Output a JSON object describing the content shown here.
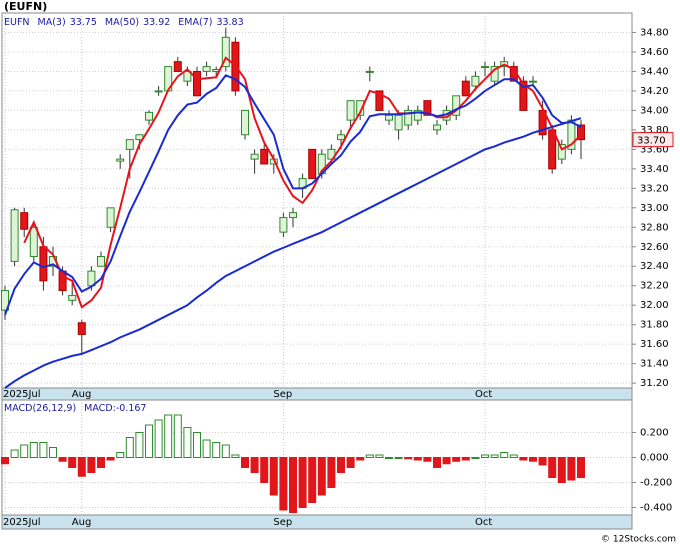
{
  "chart_data": [
    {
      "type": "candlestick",
      "title": "(EUFN)",
      "symbol": "EUFN",
      "categories": [
        "2025Jul",
        null,
        null,
        null,
        null,
        null,
        null,
        null,
        "Aug",
        null,
        null,
        null,
        null,
        null,
        null,
        null,
        null,
        null,
        null,
        null,
        null,
        null,
        null,
        null,
        null,
        null,
        null,
        null,
        null,
        "Sep",
        null,
        null,
        null,
        null,
        null,
        null,
        null,
        null,
        null,
        null,
        null,
        null,
        null,
        null,
        null,
        null,
        null,
        null,
        null,
        null,
        "Oct",
        null,
        null,
        null,
        null,
        null,
        null,
        null,
        null,
        null,
        null
      ],
      "open": [
        31.95,
        32.45,
        32.95,
        32.5,
        32.6,
        32.4,
        32.35,
        32.05,
        31.82,
        32.2,
        32.4,
        32.8,
        33.48,
        33.6,
        33.7,
        33.9,
        34.2,
        34.2,
        34.5,
        34.3,
        34.4,
        34.4,
        34.4,
        34.45,
        34.7,
        33.75,
        33.5,
        33.6,
        33.45,
        32.75,
        32.9,
        33.2,
        33.6,
        33.35,
        33.5,
        33.7,
        33.9,
        33.95,
        34.4,
        34.2,
        33.9,
        33.8,
        33.85,
        33.9,
        34.1,
        33.8,
        33.9,
        33.95,
        34.3,
        34.25,
        34.45,
        34.3,
        34.45,
        34.45,
        34.3,
        34.3,
        34.0,
        33.8,
        33.5,
        33.6,
        33.85
      ],
      "high": [
        32.2,
        33.0,
        33.0,
        32.85,
        32.7,
        32.6,
        32.4,
        32.25,
        31.85,
        32.4,
        32.55,
        33.0,
        33.55,
        33.7,
        33.75,
        34.0,
        34.25,
        34.45,
        34.55,
        34.45,
        34.45,
        34.5,
        34.45,
        34.85,
        34.75,
        34.0,
        33.6,
        33.65,
        33.55,
        32.95,
        33.0,
        33.35,
        33.6,
        33.6,
        33.65,
        33.8,
        34.1,
        34.1,
        34.45,
        34.2,
        34.0,
        34.0,
        34.05,
        34.05,
        34.1,
        33.9,
        34.05,
        34.15,
        34.35,
        34.4,
        34.5,
        34.5,
        34.55,
        34.5,
        34.35,
        34.35,
        34.1,
        33.85,
        33.7,
        33.95,
        33.9
      ],
      "low": [
        31.85,
        32.4,
        32.7,
        32.45,
        32.15,
        32.3,
        32.1,
        32.0,
        31.5,
        32.15,
        32.4,
        32.75,
        33.4,
        33.3,
        33.6,
        33.85,
        34.15,
        34.2,
        34.4,
        34.25,
        34.15,
        34.35,
        34.35,
        34.4,
        34.15,
        33.7,
        33.35,
        33.45,
        33.35,
        32.7,
        32.8,
        33.1,
        33.3,
        33.3,
        33.45,
        33.6,
        33.8,
        33.9,
        34.3,
        34.0,
        33.85,
        33.7,
        33.8,
        33.85,
        33.95,
        33.75,
        33.85,
        33.9,
        34.15,
        34.2,
        34.35,
        34.25,
        34.35,
        34.3,
        34.0,
        34.25,
        33.7,
        33.35,
        33.45,
        33.55,
        33.5
      ],
      "close": [
        32.15,
        32.98,
        32.78,
        32.8,
        32.25,
        32.5,
        32.15,
        32.1,
        31.7,
        32.35,
        32.5,
        33.0,
        33.5,
        33.7,
        33.75,
        33.98,
        34.2,
        34.45,
        34.4,
        34.4,
        34.15,
        34.45,
        34.42,
        34.75,
        34.2,
        34.0,
        33.55,
        33.45,
        33.5,
        32.9,
        32.95,
        33.3,
        33.3,
        33.55,
        33.6,
        33.75,
        34.1,
        34.1,
        34.4,
        34.0,
        33.95,
        33.95,
        34.0,
        34.0,
        33.95,
        33.85,
        34.0,
        34.15,
        34.15,
        34.35,
        34.45,
        34.45,
        34.5,
        34.3,
        34.0,
        34.3,
        33.75,
        33.4,
        33.65,
        33.9,
        33.7
      ],
      "up_color": "#2e8b2e",
      "down_color": "#e0161b",
      "lines": [
        {
          "name": "MA(3)",
          "last": 33.75,
          "color": "#e8141b",
          "values": [
            null,
            null,
            32.64,
            32.85,
            32.61,
            32.52,
            32.3,
            32.25,
            31.98,
            32.05,
            32.18,
            32.62,
            33.0,
            33.4,
            33.65,
            33.81,
            33.98,
            34.21,
            34.35,
            34.42,
            34.32,
            34.33,
            34.34,
            34.54,
            34.46,
            34.32,
            33.92,
            33.67,
            33.5,
            33.28,
            33.12,
            33.05,
            33.18,
            33.38,
            33.48,
            33.63,
            33.82,
            33.98,
            34.2,
            34.17,
            34.12,
            33.97,
            33.97,
            33.98,
            33.98,
            33.93,
            33.93,
            34.0,
            34.1,
            34.22,
            34.32,
            34.42,
            34.47,
            34.42,
            34.27,
            34.2,
            34.02,
            33.82,
            33.6,
            33.65,
            33.75
          ]
        },
        {
          "name": "MA(50)",
          "last": 33.92,
          "color": "#1a2bd0",
          "values": [
            31.15,
            31.22,
            31.28,
            31.33,
            31.38,
            31.42,
            31.45,
            31.48,
            31.5,
            31.54,
            31.58,
            31.62,
            31.67,
            31.71,
            31.75,
            31.8,
            31.85,
            31.9,
            31.95,
            32.0,
            32.08,
            32.15,
            32.23,
            32.3,
            32.35,
            32.4,
            32.45,
            32.5,
            32.55,
            32.59,
            32.63,
            32.67,
            32.71,
            32.75,
            32.8,
            32.85,
            32.9,
            32.95,
            33.0,
            33.05,
            33.1,
            33.15,
            33.2,
            33.25,
            33.3,
            33.35,
            33.4,
            33.45,
            33.5,
            33.55,
            33.6,
            33.63,
            33.67,
            33.7,
            33.73,
            33.77,
            33.8,
            33.83,
            33.86,
            33.89,
            33.92
          ]
        },
        {
          "name": "EMA(7)",
          "last": 33.83,
          "color": "#1a2bd0",
          "values": [
            31.9,
            32.17,
            32.32,
            32.44,
            32.39,
            32.42,
            32.35,
            32.29,
            32.14,
            32.19,
            32.27,
            32.45,
            32.71,
            32.96,
            33.16,
            33.37,
            33.58,
            33.8,
            33.95,
            34.06,
            34.08,
            34.17,
            34.23,
            34.36,
            34.32,
            34.24,
            34.07,
            33.91,
            33.75,
            33.4,
            33.2,
            33.2,
            33.25,
            33.35,
            33.45,
            33.54,
            33.68,
            33.78,
            33.94,
            33.96,
            33.96,
            33.96,
            33.97,
            33.98,
            33.97,
            33.94,
            33.96,
            34.01,
            34.05,
            34.12,
            34.2,
            34.26,
            34.32,
            34.32,
            34.24,
            34.26,
            34.13,
            33.95,
            33.87,
            33.88,
            33.83
          ]
        }
      ],
      "last_price": {
        "value": 33.7,
        "label": "33.70"
      },
      "ylim": [
        31.15,
        35.0
      ],
      "yticks": [
        {
          "value": 31.2,
          "label": "31.20"
        },
        {
          "value": 31.4,
          "label": "31.40"
        },
        {
          "value": 31.6,
          "label": "31.60"
        },
        {
          "value": 31.8,
          "label": "31.80"
        },
        {
          "value": 32.0,
          "label": "32.00"
        },
        {
          "value": 32.2,
          "label": "32.20"
        },
        {
          "value": 32.4,
          "label": "32.40"
        },
        {
          "value": 32.6,
          "label": "32.60"
        },
        {
          "value": 32.8,
          "label": "32.80"
        },
        {
          "value": 33.0,
          "label": "33.00"
        },
        {
          "value": 33.2,
          "label": "33.20"
        },
        {
          "value": 33.4,
          "label": "33.40"
        },
        {
          "value": 33.6,
          "label": "33.60"
        },
        {
          "value": 33.8,
          "label": "33.80"
        },
        {
          "value": 34.0,
          "label": "34.00"
        },
        {
          "value": 34.2,
          "label": "34.20"
        },
        {
          "value": 34.4,
          "label": "34.40"
        },
        {
          "value": 34.6,
          "label": "34.60"
        },
        {
          "value": 34.8,
          "label": "34.80"
        }
      ],
      "grid": true
    },
    {
      "type": "histogram-bars",
      "title": "MACD(26,12,9)",
      "value_name": "MACD:",
      "last": -0.167,
      "values": [
        -0.05,
        0.06,
        0.1,
        0.12,
        0.12,
        0.08,
        -0.03,
        -0.08,
        -0.15,
        -0.12,
        -0.08,
        -0.02,
        0.04,
        0.16,
        0.2,
        0.26,
        0.3,
        0.34,
        0.34,
        0.24,
        0.2,
        0.14,
        0.12,
        0.1,
        0.02,
        -0.08,
        -0.12,
        -0.2,
        -0.3,
        -0.42,
        -0.44,
        -0.4,
        -0.36,
        -0.3,
        -0.24,
        -0.12,
        -0.08,
        -0.02,
        0.02,
        0.02,
        0.0,
        0.0,
        -0.01,
        -0.02,
        -0.03,
        -0.08,
        -0.05,
        -0.03,
        -0.02,
        0.0,
        0.02,
        0.02,
        0.04,
        0.02,
        -0.02,
        -0.03,
        -0.06,
        -0.16,
        -0.2,
        -0.18,
        -0.16
      ],
      "up_color": "#2e8b2e",
      "down_color": "#e0161b",
      "ylim": [
        -0.46,
        0.46
      ],
      "yticks": [
        {
          "value": 0.2,
          "label": "0.200"
        },
        {
          "value": 0.0,
          "label": "0.000"
        },
        {
          "value": -0.2,
          "label": "-0.200"
        },
        {
          "value": -0.4,
          "label": "-0.400"
        }
      ],
      "grid": true
    }
  ],
  "footer": "© 12Stocks.com"
}
